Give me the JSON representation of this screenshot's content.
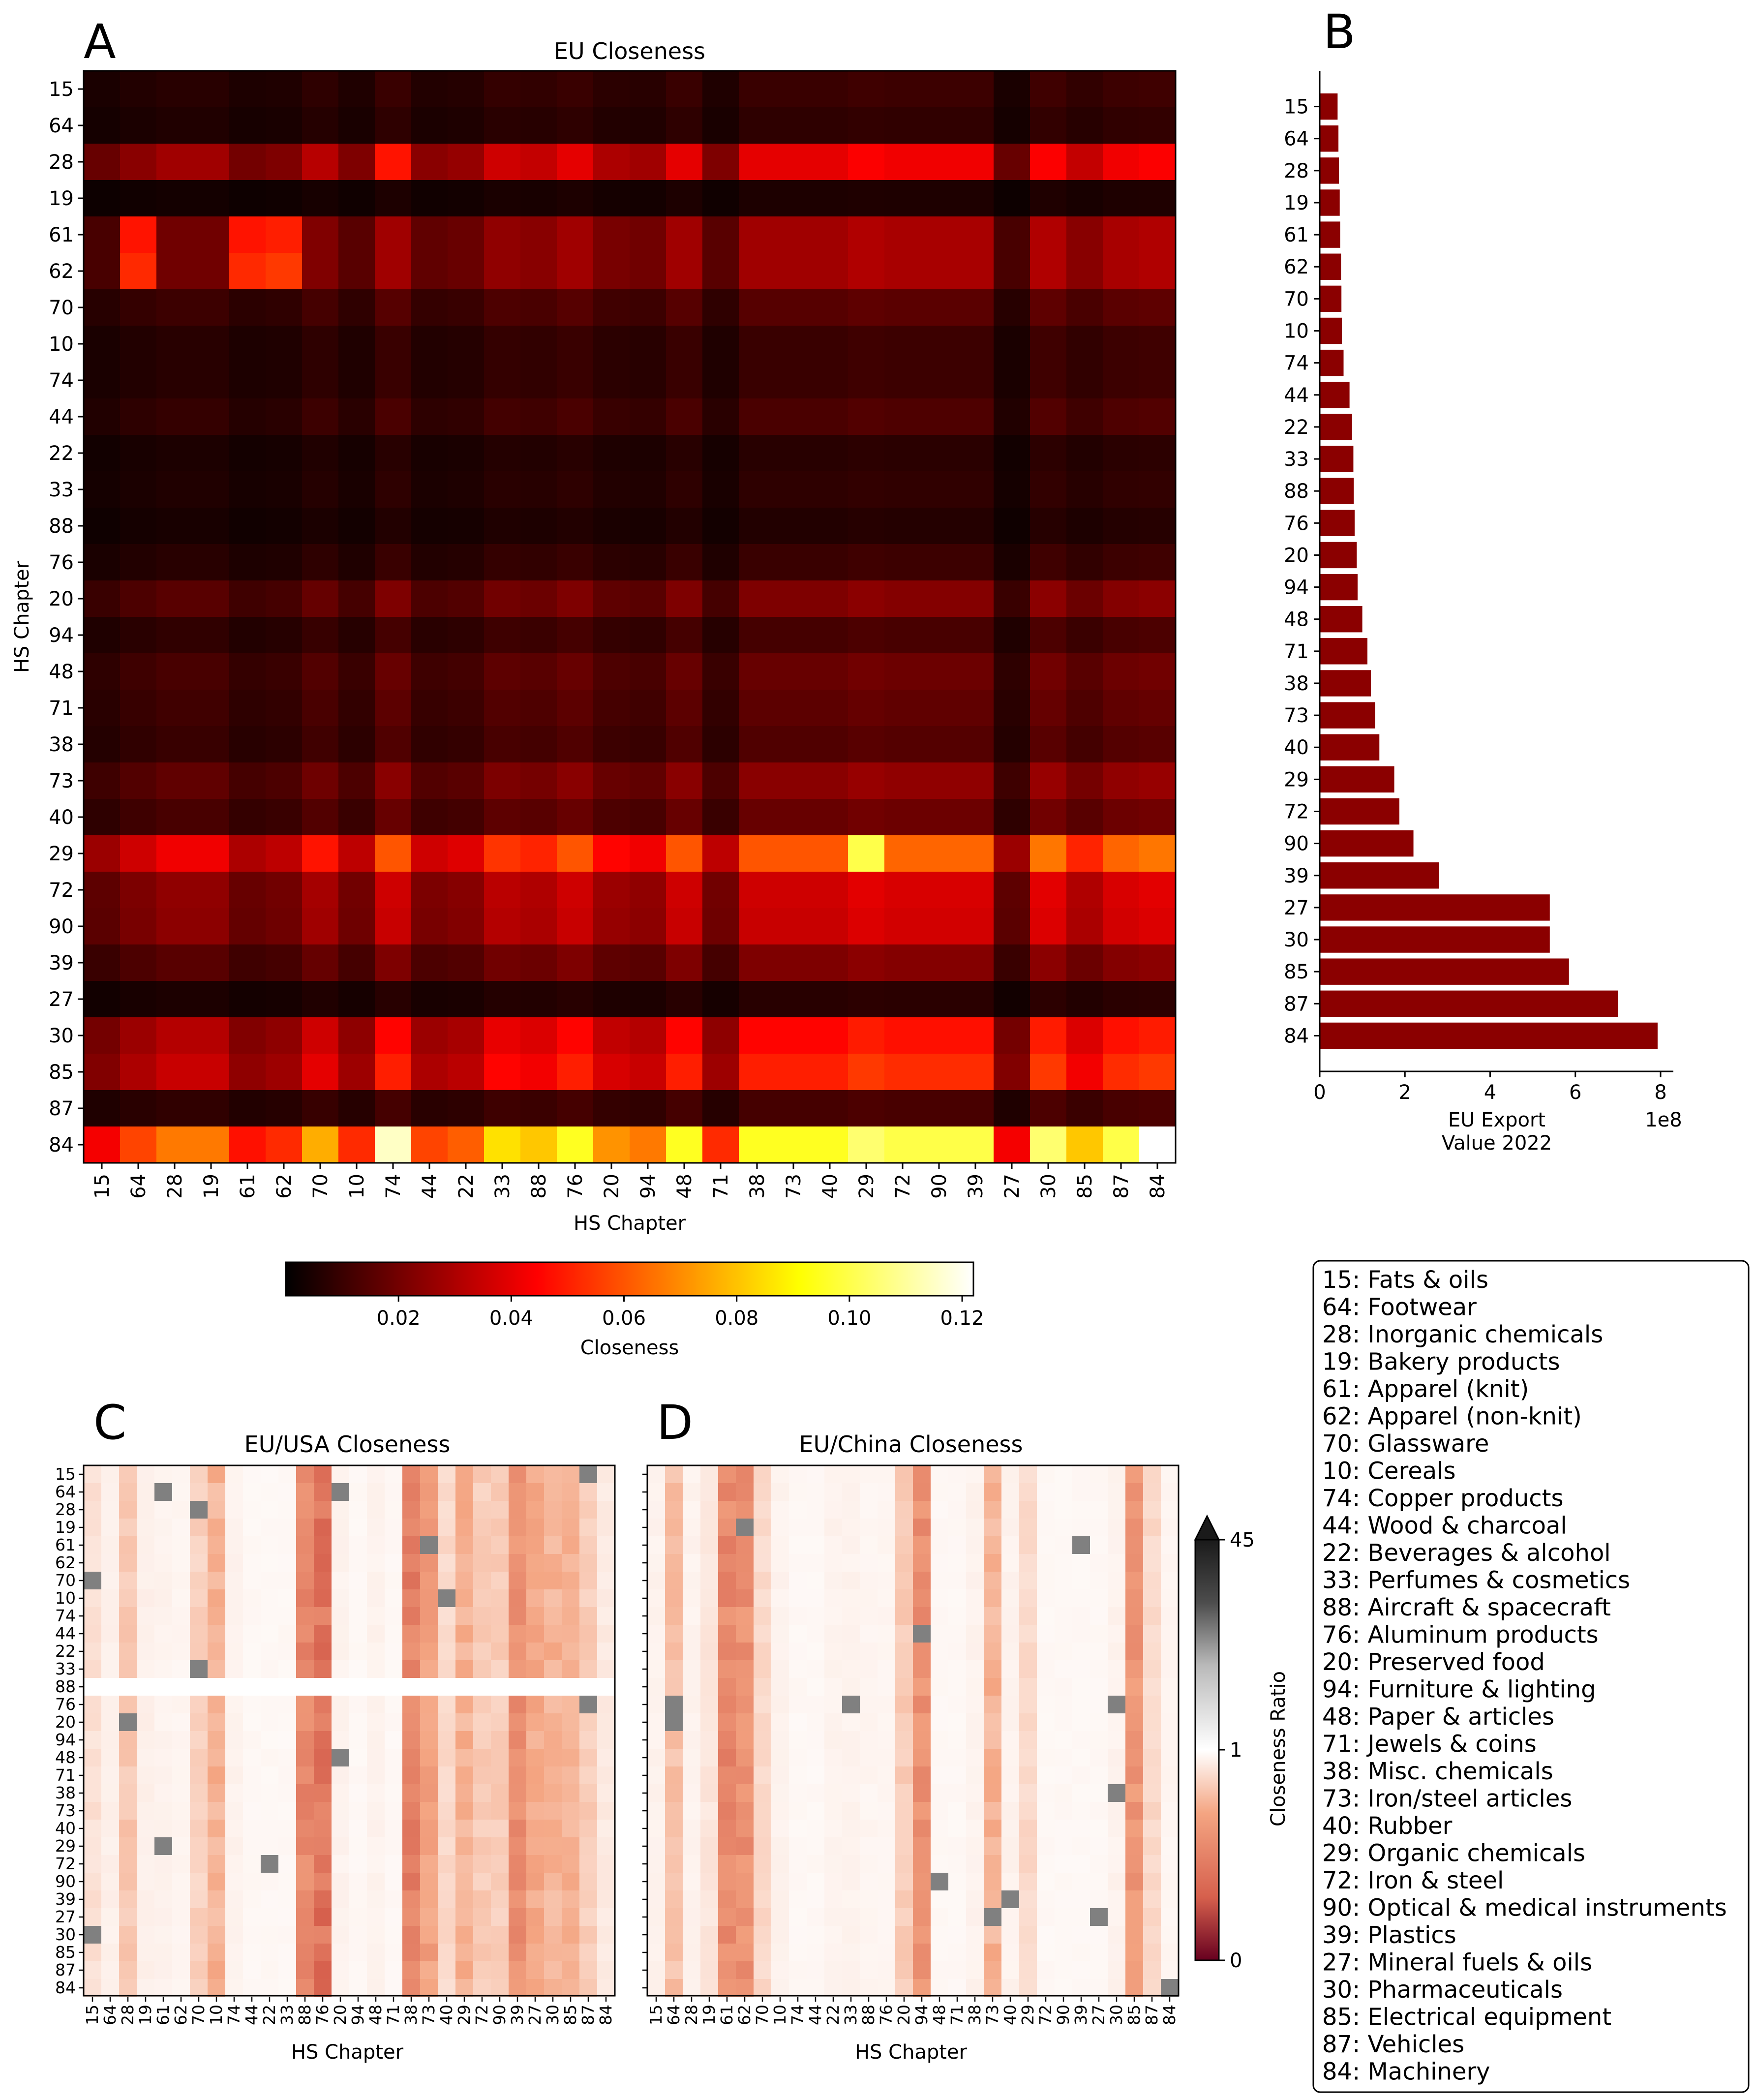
{
  "panel_letters": {
    "a": "A",
    "b": "B",
    "c": "C",
    "d": "D"
  },
  "panel_a": {
    "title": "EU Closeness",
    "xlabel": "HS Chapter",
    "ylabel": "HS Chapter",
    "colorbar_label": "Closeness",
    "colorbar_ticks": [
      "0.02",
      "0.04",
      "0.06",
      "0.08",
      "0.10",
      "0.12"
    ]
  },
  "panel_b": {
    "xlabel_line1": "EU Export",
    "xlabel_line2": "Value 2022",
    "x_ticks": [
      "0",
      "2",
      "4",
      "6",
      "8"
    ],
    "x_exponent": "1e8"
  },
  "panel_c": {
    "title": "EU/USA Closeness",
    "xlabel": "HS Chapter"
  },
  "panel_d": {
    "title": "EU/China Closeness",
    "xlabel": "HS Chapter"
  },
  "ratio_colorbar": {
    "label": "Closeness Ratio",
    "ticks": [
      "45",
      "1",
      "0"
    ]
  },
  "chapters_ab": [
    "15",
    "64",
    "28",
    "19",
    "61",
    "62",
    "70",
    "10",
    "74",
    "44",
    "22",
    "33",
    "88",
    "76",
    "20",
    "94",
    "48",
    "71",
    "38",
    "73",
    "40",
    "29",
    "72",
    "90",
    "39",
    "27",
    "30",
    "85",
    "87",
    "84"
  ],
  "chapters_c_y": [
    "15",
    "64",
    "28",
    "19",
    "61",
    "62",
    "70",
    "10",
    "74",
    "44",
    "22",
    "33",
    "88",
    "76",
    "20",
    "94",
    "48",
    "71",
    "38",
    "73",
    "40",
    "29",
    "72",
    "90",
    "39",
    "27",
    "30",
    "85",
    "87",
    "84"
  ],
  "chapters_c_x": [
    "15",
    "64",
    "28",
    "19",
    "61",
    "62",
    "70",
    "10",
    "74",
    "44",
    "22",
    "33",
    "88",
    "76",
    "20",
    "94",
    "48",
    "71",
    "38",
    "73",
    "40",
    "29",
    "72",
    "90",
    "39",
    "27",
    "30",
    "85",
    "87",
    "84"
  ],
  "chapters_d_x": [
    "15",
    "64",
    "28",
    "19",
    "61",
    "62",
    "70",
    "10",
    "74",
    "44",
    "22",
    "33",
    "88",
    "76",
    "20",
    "94",
    "48",
    "71",
    "38",
    "73",
    "40",
    "29",
    "72",
    "90",
    "39",
    "27",
    "30",
    "85",
    "87",
    "84"
  ],
  "legend": [
    "15: Fats & oils",
    "64: Footwear",
    "28: Inorganic chemicals",
    "19: Bakery products",
    "61: Apparel (knit)",
    "62: Apparel (non-knit)",
    "70: Glassware",
    "10: Cereals",
    "74: Copper products",
    "44: Wood & charcoal",
    "22: Beverages & alcohol",
    "33: Perfumes & cosmetics",
    "88: Aircraft & spacecraft",
    "76: Aluminum products",
    "20: Preserved food",
    "94: Furniture & lighting",
    "48: Paper & articles",
    "71: Jewels & coins",
    "38: Misc. chemicals",
    "73: Iron/steel articles",
    "40: Rubber",
    "29: Organic chemicals",
    "72: Iron & steel",
    "90: Optical & medical instruments",
    "39: Plastics",
    "27: Mineral fuels & oils",
    "30: Pharmaceuticals",
    "85: Electrical equipment",
    "87: Vehicles",
    "84: Machinery"
  ],
  "chart_data": [
    {
      "type": "heatmap",
      "title": "EU Closeness",
      "xlabel": "HS Chapter",
      "ylabel": "HS Chapter",
      "colorbar": "Closeness",
      "vmin": 0.0,
      "vmax": 0.122,
      "row_levels": [
        0.01,
        0.008,
        0.04,
        0.005,
        0.028,
        0.028,
        0.015,
        0.01,
        0.01,
        0.013,
        0.007,
        0.008,
        0.006,
        0.01,
        0.022,
        0.012,
        0.018,
        0.016,
        0.014,
        0.024,
        0.018,
        0.06,
        0.036,
        0.035,
        0.022,
        0.007,
        0.045,
        0.05,
        0.012,
        0.095
      ],
      "col_levels": [
        0.45,
        0.6,
        0.7,
        0.7,
        0.5,
        0.55,
        0.8,
        0.55,
        1.0,
        0.6,
        0.65,
        0.9,
        0.85,
        1.0,
        0.75,
        0.7,
        1.0,
        0.55,
        1.0,
        1.0,
        1.0,
        1.1,
        1.05,
        1.05,
        1.05,
        0.45,
        1.1,
        0.85,
        1.05,
        1.1
      ],
      "hotspots": [
        {
          "row": 4,
          "col": 1,
          "value": 0.048
        },
        {
          "row": 5,
          "col": 1,
          "value": 0.052
        },
        {
          "row": 4,
          "col": 4,
          "value": 0.048
        },
        {
          "row": 4,
          "col": 5,
          "value": 0.05
        },
        {
          "row": 5,
          "col": 4,
          "value": 0.052
        },
        {
          "row": 5,
          "col": 5,
          "value": 0.055
        },
        {
          "row": 21,
          "col": 21,
          "value": 0.1
        },
        {
          "row": 29,
          "col": 29,
          "value": 0.122
        },
        {
          "row": 29,
          "col": 8,
          "value": 0.115
        },
        {
          "row": 2,
          "col": 8,
          "value": 0.048
        }
      ]
    },
    {
      "type": "bar",
      "orientation": "horizontal",
      "categories": [
        "15",
        "64",
        "28",
        "19",
        "61",
        "62",
        "70",
        "10",
        "74",
        "44",
        "22",
        "33",
        "88",
        "76",
        "20",
        "94",
        "48",
        "71",
        "38",
        "73",
        "40",
        "29",
        "72",
        "90",
        "39",
        "27",
        "30",
        "85",
        "87",
        "84"
      ],
      "values": [
        0.42,
        0.44,
        0.45,
        0.47,
        0.48,
        0.5,
        0.51,
        0.52,
        0.56,
        0.7,
        0.76,
        0.79,
        0.8,
        0.82,
        0.87,
        0.89,
        1.0,
        1.12,
        1.2,
        1.3,
        1.4,
        1.75,
        1.87,
        2.2,
        2.8,
        5.4,
        5.4,
        5.85,
        7.0,
        7.93
      ],
      "value_scale": "1e8",
      "xlabel": "EU Export Value 2022",
      "xlim": [
        0,
        8.3
      ],
      "bar_color": "#8b0000"
    },
    {
      "type": "heatmap",
      "title": "EU/USA Closeness",
      "xlabel": "HS Chapter",
      "colorbar": "Closeness Ratio",
      "scale": [
        0,
        1,
        45
      ],
      "col_levels": [
        0.12,
        0.06,
        0.22,
        0.06,
        0.05,
        0.04,
        0.18,
        0.3,
        0.05,
        0.03,
        0.03,
        0.03,
        0.55,
        0.7,
        0.05,
        0.03,
        0.05,
        0.03,
        0.6,
        0.4,
        0.15,
        0.3,
        0.2,
        0.2,
        0.5,
        0.35,
        0.3,
        0.3,
        0.2,
        0.08
      ],
      "white_row": 12
    },
    {
      "type": "heatmap",
      "title": "EU/China Closeness",
      "xlabel": "HS Chapter",
      "colorbar": "Closeness Ratio",
      "scale": [
        0,
        1,
        45
      ],
      "col_levels": [
        0.05,
        0.25,
        0.05,
        0.1,
        0.55,
        0.5,
        0.15,
        0.05,
        0.03,
        0.03,
        0.05,
        0.05,
        0.04,
        0.04,
        0.2,
        0.5,
        0.03,
        0.03,
        0.05,
        0.3,
        0.05,
        0.15,
        0.03,
        0.03,
        0.03,
        0.03,
        0.05,
        0.45,
        0.15,
        0.04
      ]
    }
  ]
}
